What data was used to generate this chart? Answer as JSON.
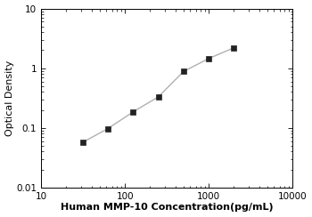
{
  "x": [
    31.25,
    62.5,
    125,
    250,
    500,
    1000,
    2000
  ],
  "y": [
    0.057,
    0.097,
    0.185,
    0.33,
    0.88,
    1.45,
    2.2
  ],
  "xlim": [
    10,
    10000
  ],
  "ylim": [
    0.01,
    10
  ],
  "xlabel": "Human MMP-10 Concentration(pg/mL)",
  "ylabel": "Optical Density",
  "line_color": "#b0b0b0",
  "marker_color": "#222222",
  "marker": "s",
  "marker_size": 4,
  "line_width": 1.0,
  "xlabel_fontsize": 8,
  "ylabel_fontsize": 8,
  "tick_fontsize": 7.5,
  "background_color": "#ffffff",
  "yticks": [
    0.01,
    0.1,
    1,
    10
  ],
  "ytick_labels": [
    "0.01",
    "0.1",
    "1",
    "10"
  ],
  "xticks": [
    10,
    100,
    1000,
    10000
  ],
  "xtick_labels": [
    "10",
    "100",
    "1000",
    "10000"
  ]
}
